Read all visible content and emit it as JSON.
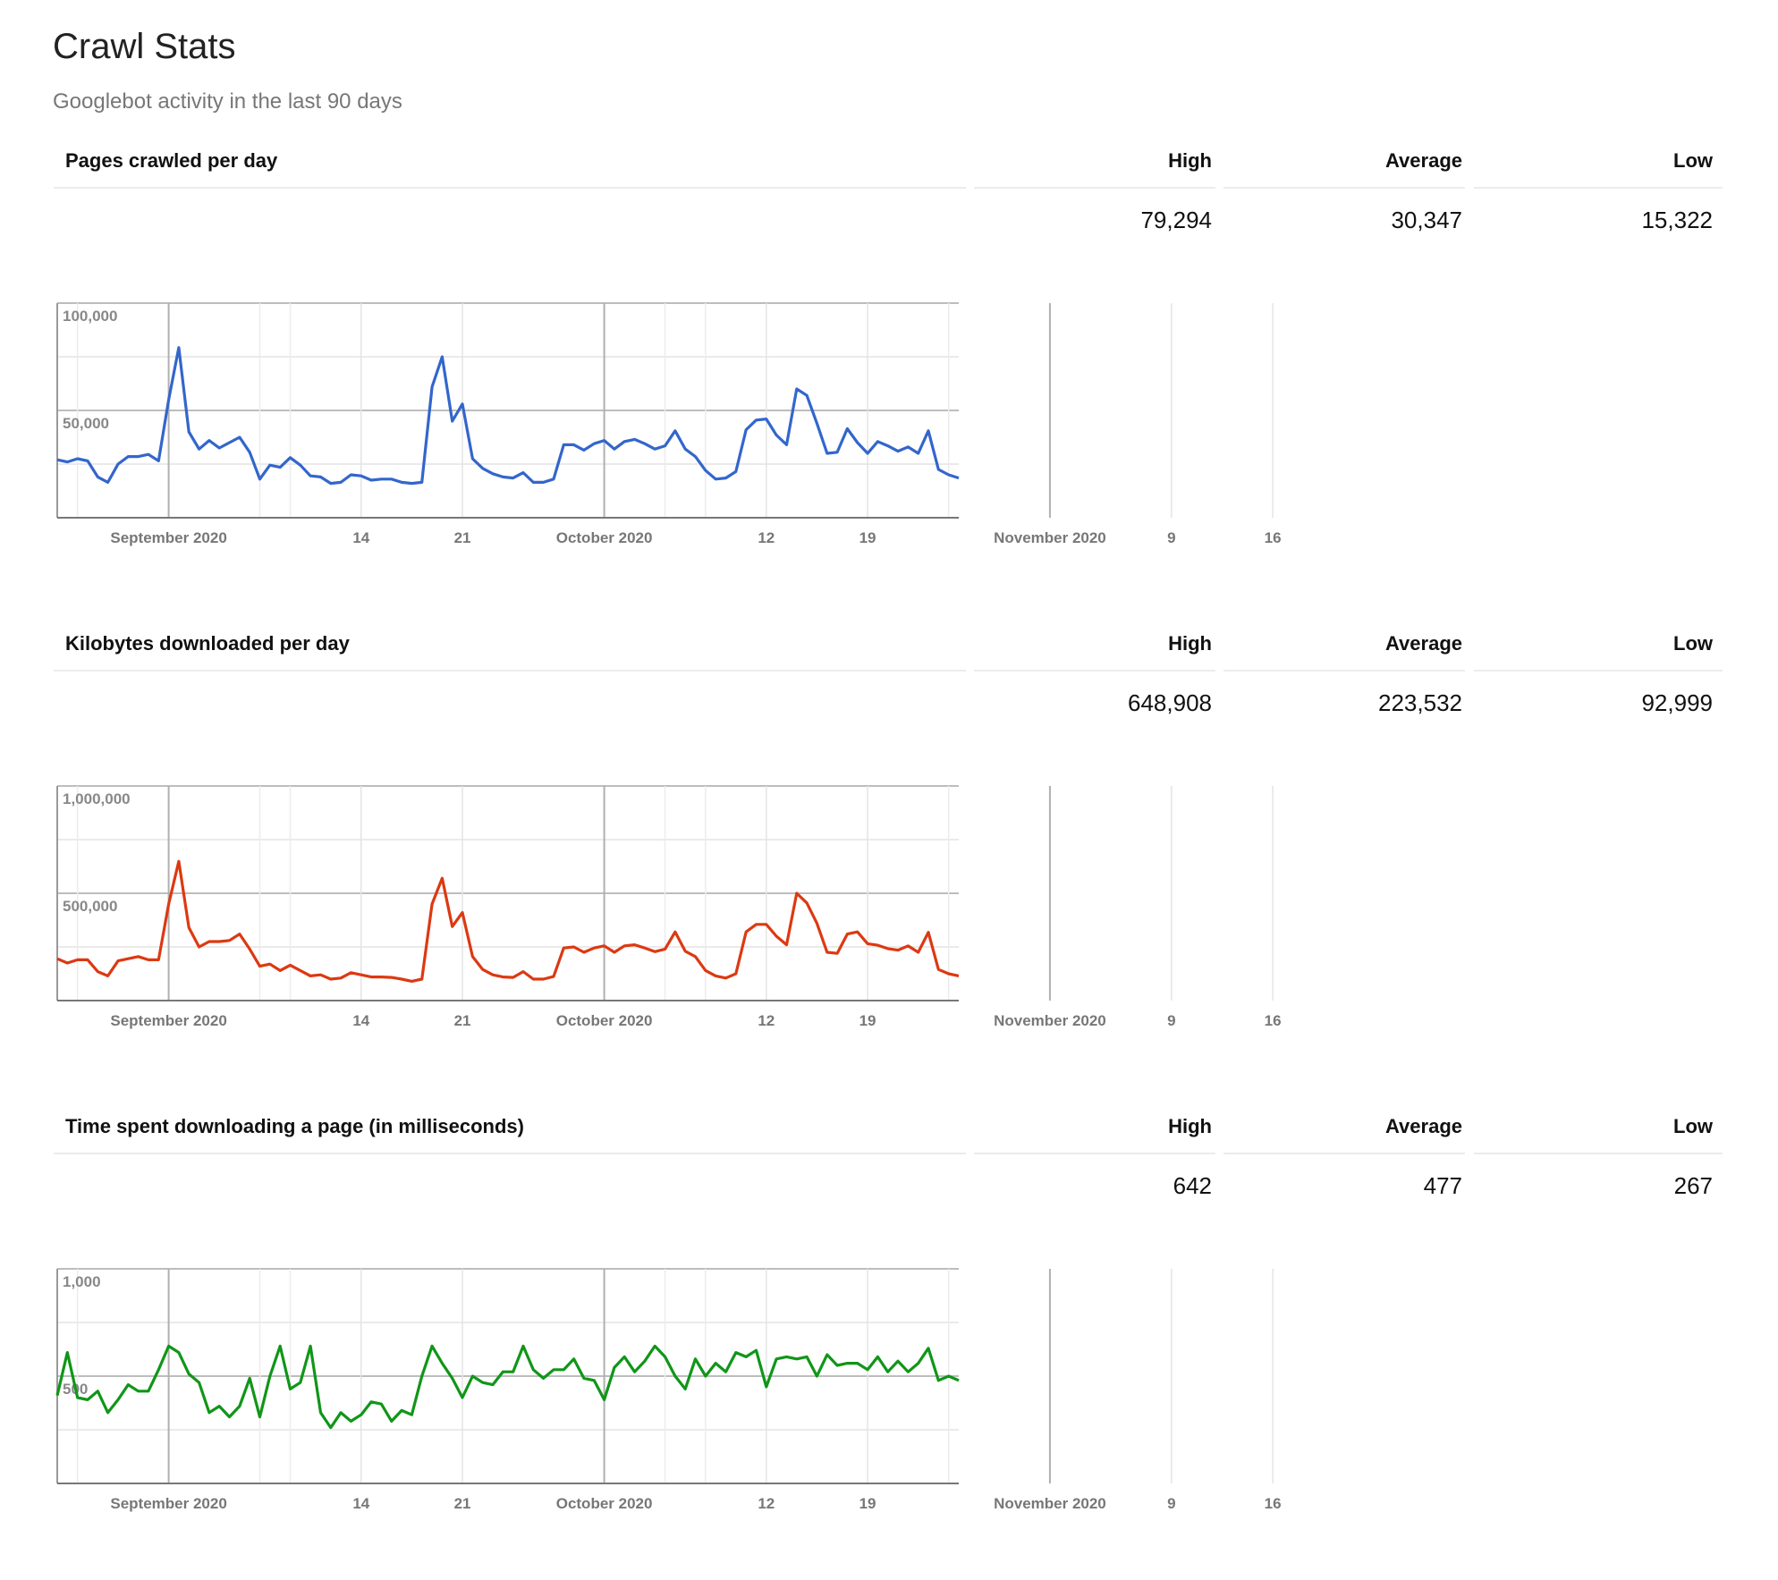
{
  "page": {
    "title": "Crawl Stats",
    "subtitle": "Googlebot activity in the last 90 days"
  },
  "stat_headers": {
    "high": "High",
    "average": "Average",
    "low": "Low"
  },
  "sections": [
    {
      "title": "Pages crawled per day",
      "stats": {
        "high": "79,294",
        "average": "30,347",
        "low": "15,322"
      },
      "color": "#3366cc"
    },
    {
      "title": "Kilobytes downloaded per day",
      "stats": {
        "high": "648,908",
        "average": "223,532",
        "low": "92,999"
      },
      "color": "#dc3912"
    },
    {
      "title": "Time spent downloading a page (in milliseconds)",
      "stats": {
        "high": "642",
        "average": "477",
        "low": "267"
      },
      "color": "#109618"
    }
  ],
  "chart_data": [
    {
      "type": "line",
      "title": "Pages crawled per day",
      "ylim": [
        0,
        100000
      ],
      "y_ticks": [
        {
          "value": 100000,
          "label": "100,000"
        },
        {
          "value": 50000,
          "label": "50,000"
        }
      ],
      "x_ticks": [
        {
          "index": 11,
          "label": "September 2020"
        },
        {
          "index": 30,
          "label": "14"
        },
        {
          "index": 40,
          "label": "21"
        },
        {
          "index": 54,
          "label": "October 2020"
        },
        {
          "index": 70,
          "label": "12"
        },
        {
          "index": 80,
          "label": "19"
        },
        {
          "index": 98,
          "label": "November 2020"
        },
        {
          "index": 110,
          "label": "9"
        },
        {
          "index": 120,
          "label": "16"
        }
      ],
      "grid": true,
      "series": [
        {
          "color": "#3366cc",
          "values": [
            27000,
            26000,
            27500,
            26500,
            19000,
            16500,
            25000,
            28500,
            28500,
            29500,
            26500,
            55000,
            79294,
            40000,
            32000,
            36000,
            32500,
            35000,
            37500,
            30500,
            18000,
            24500,
            23500,
            28000,
            24500,
            19500,
            19000,
            16000,
            16500,
            20000,
            19500,
            17500,
            18000,
            18000,
            16500,
            16000,
            16500,
            61000,
            75000,
            45000,
            53000,
            27500,
            23000,
            20500,
            19000,
            18500,
            21000,
            16500,
            16500,
            18000,
            34000,
            34000,
            31500,
            34500,
            36000,
            32000,
            35500,
            36500,
            34500,
            32000,
            33500,
            40500,
            32000,
            28500,
            22000,
            18000,
            18500,
            21500,
            41000,
            45500,
            46000,
            38500,
            34000,
            60000,
            57000,
            44000,
            30000,
            30500,
            41500,
            35000,
            30000,
            35500,
            33500,
            31000,
            33000,
            30000,
            40500,
            22500,
            20000,
            18500
          ]
        }
      ]
    },
    {
      "type": "line",
      "title": "Kilobytes downloaded per day",
      "ylim": [
        0,
        1000000
      ],
      "y_ticks": [
        {
          "value": 1000000,
          "label": "1,000,000"
        },
        {
          "value": 500000,
          "label": "500,000"
        }
      ],
      "x_ticks": [
        {
          "index": 11,
          "label": "September 2020"
        },
        {
          "index": 30,
          "label": "14"
        },
        {
          "index": 40,
          "label": "21"
        },
        {
          "index": 54,
          "label": "October 2020"
        },
        {
          "index": 70,
          "label": "12"
        },
        {
          "index": 80,
          "label": "19"
        },
        {
          "index": 98,
          "label": "November 2020"
        },
        {
          "index": 110,
          "label": "9"
        },
        {
          "index": 120,
          "label": "16"
        }
      ],
      "grid": true,
      "series": [
        {
          "color": "#dc3912",
          "values": [
            195000,
            175000,
            190000,
            190000,
            135000,
            115000,
            185000,
            195000,
            205000,
            190000,
            190000,
            450000,
            648908,
            340000,
            250000,
            275000,
            275000,
            280000,
            310000,
            240000,
            160000,
            170000,
            140000,
            165000,
            140000,
            115000,
            120000,
            100000,
            105000,
            130000,
            120000,
            110000,
            110000,
            108000,
            100000,
            90000,
            100000,
            450000,
            570000,
            345000,
            410000,
            205000,
            145000,
            120000,
            110000,
            108000,
            135000,
            100000,
            100000,
            112000,
            245000,
            250000,
            225000,
            245000,
            255000,
            225000,
            255000,
            260000,
            245000,
            228000,
            240000,
            320000,
            230000,
            205000,
            140000,
            115000,
            105000,
            125000,
            320000,
            355000,
            355000,
            300000,
            260000,
            500000,
            455000,
            360000,
            225000,
            220000,
            310000,
            320000,
            265000,
            258000,
            242000,
            235000,
            255000,
            225000,
            318000,
            145000,
            125000,
            115000
          ]
        }
      ]
    },
    {
      "type": "line",
      "title": "Time spent downloading a page (in milliseconds)",
      "ylim": [
        0,
        1000
      ],
      "y_ticks": [
        {
          "value": 1000,
          "label": "1,000"
        },
        {
          "value": 500,
          "label": "500"
        }
      ],
      "x_ticks": [
        {
          "index": 11,
          "label": "September 2020"
        },
        {
          "index": 30,
          "label": "14"
        },
        {
          "index": 40,
          "label": "21"
        },
        {
          "index": 54,
          "label": "October 2020"
        },
        {
          "index": 70,
          "label": "12"
        },
        {
          "index": 80,
          "label": "19"
        },
        {
          "index": 98,
          "label": "November 2020"
        },
        {
          "index": 110,
          "label": "9"
        },
        {
          "index": 120,
          "label": "16"
        }
      ],
      "grid": true,
      "series": [
        {
          "color": "#109618",
          "values": [
            410,
            610,
            400,
            390,
            430,
            330,
            390,
            460,
            430,
            430,
            530,
            640,
            610,
            510,
            470,
            330,
            360,
            310,
            360,
            490,
            310,
            500,
            640,
            440,
            470,
            640,
            330,
            260,
            330,
            290,
            320,
            380,
            370,
            290,
            340,
            320,
            500,
            640,
            560,
            490,
            400,
            500,
            470,
            460,
            520,
            520,
            640,
            530,
            490,
            530,
            530,
            580,
            490,
            480,
            390,
            540,
            590,
            520,
            570,
            640,
            590,
            500,
            440,
            580,
            500,
            560,
            520,
            610,
            590,
            620,
            450,
            580,
            590,
            580,
            590,
            500,
            600,
            550,
            560,
            560,
            530,
            590,
            520,
            570,
            520,
            560,
            630,
            480,
            500,
            480
          ]
        }
      ]
    }
  ]
}
